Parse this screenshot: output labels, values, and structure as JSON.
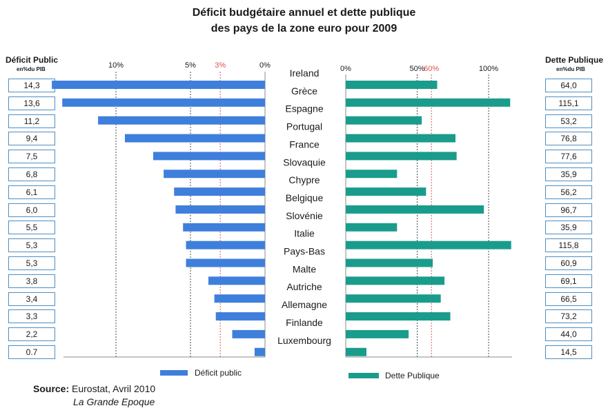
{
  "title_line1": "Déficit  budgétaire annuel et dette publique",
  "title_line2": "des pays de la zone euro pour 2009",
  "left_header": "Déficit Public",
  "left_unit": "en%du PIB",
  "right_header": "Dette Publique",
  "right_unit": "en%du PIB",
  "source_label": "Source:",
  "source_text": " Eurostat, Avril 2010",
  "publisher": "La Grande Epoque",
  "colors": {
    "deficit": "#3f7fdc",
    "debt": "#1a9c8c",
    "reference_line": "#d9534f"
  },
  "chart_data": {
    "type": "bar",
    "categories": [
      "Ireland",
      "Grèce",
      "Espagne",
      "Portugal",
      "France",
      "Slovaquie",
      "Chypre",
      "Belgique",
      "Slovénie",
      "Italie",
      "Pays-Bas",
      "Malte",
      "Autriche",
      "Allemagne",
      "Finlande",
      "Luxembourg"
    ],
    "deficit_box_labels": [
      "14,3",
      "13,6",
      "11,2",
      "9,4",
      "7,5",
      "6,8",
      "6,1",
      "6,0",
      "5,5",
      "5,3",
      "5,3",
      "3,8",
      "3,4",
      "3,3",
      "2,2",
      "0.7"
    ],
    "debt_box_labels": [
      "64,0",
      "115,1",
      "53,2",
      "76,8",
      "77,6",
      "35,9",
      "56,2",
      "96,7",
      "35,9",
      "115,8",
      "60,9",
      "69,1",
      "66,5",
      "73,2",
      "44,0",
      "14,5"
    ],
    "series": [
      {
        "name": "Déficit public",
        "axis_ticks": [
          "10%",
          "5%",
          "3%",
          "0%"
        ],
        "reference_tick": "3%",
        "values": [
          14.3,
          13.6,
          11.2,
          9.4,
          7.5,
          6.8,
          6.1,
          6.0,
          5.5,
          5.3,
          5.3,
          3.8,
          3.4,
          3.3,
          2.2,
          0.7
        ],
        "xlim": [
          0,
          14
        ]
      },
      {
        "name": "Dette Publique",
        "axis_ticks": [
          "0%",
          "50%",
          "60%",
          "100%"
        ],
        "reference_tick": "60%",
        "values": [
          64.0,
          115.1,
          53.2,
          76.8,
          77.6,
          35.9,
          56.2,
          96.7,
          35.9,
          115.8,
          60.9,
          69.1,
          66.5,
          73.2,
          44.0,
          14.5
        ],
        "xlim": [
          0,
          116
        ]
      }
    ],
    "reference_lines": {
      "deficit": 3,
      "debt": 60
    },
    "legend_placement": "bottom"
  }
}
